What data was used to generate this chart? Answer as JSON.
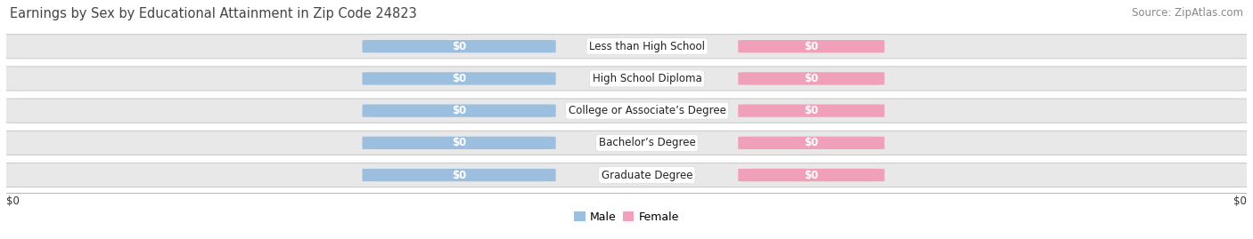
{
  "title": "Earnings by Sex by Educational Attainment in Zip Code 24823",
  "source": "Source: ZipAtlas.com",
  "categories": [
    "Less than High School",
    "High School Diploma",
    "College or Associate’s Degree",
    "Bachelor’s Degree",
    "Graduate Degree"
  ],
  "male_values": [
    0,
    0,
    0,
    0,
    0
  ],
  "female_values": [
    0,
    0,
    0,
    0,
    0
  ],
  "male_color": "#9dbfdf",
  "female_color": "#f0a0b8",
  "row_bg_color": "#e8e8e8",
  "row_edge_color": "#cccccc",
  "xlabel_left": "$0",
  "xlabel_right": "$0",
  "value_label": "$0",
  "legend_male": "Male",
  "legend_female": "Female",
  "title_fontsize": 10.5,
  "source_fontsize": 8.5,
  "label_fontsize": 8.5,
  "cat_fontsize": 8.5,
  "background_color": "#ffffff"
}
